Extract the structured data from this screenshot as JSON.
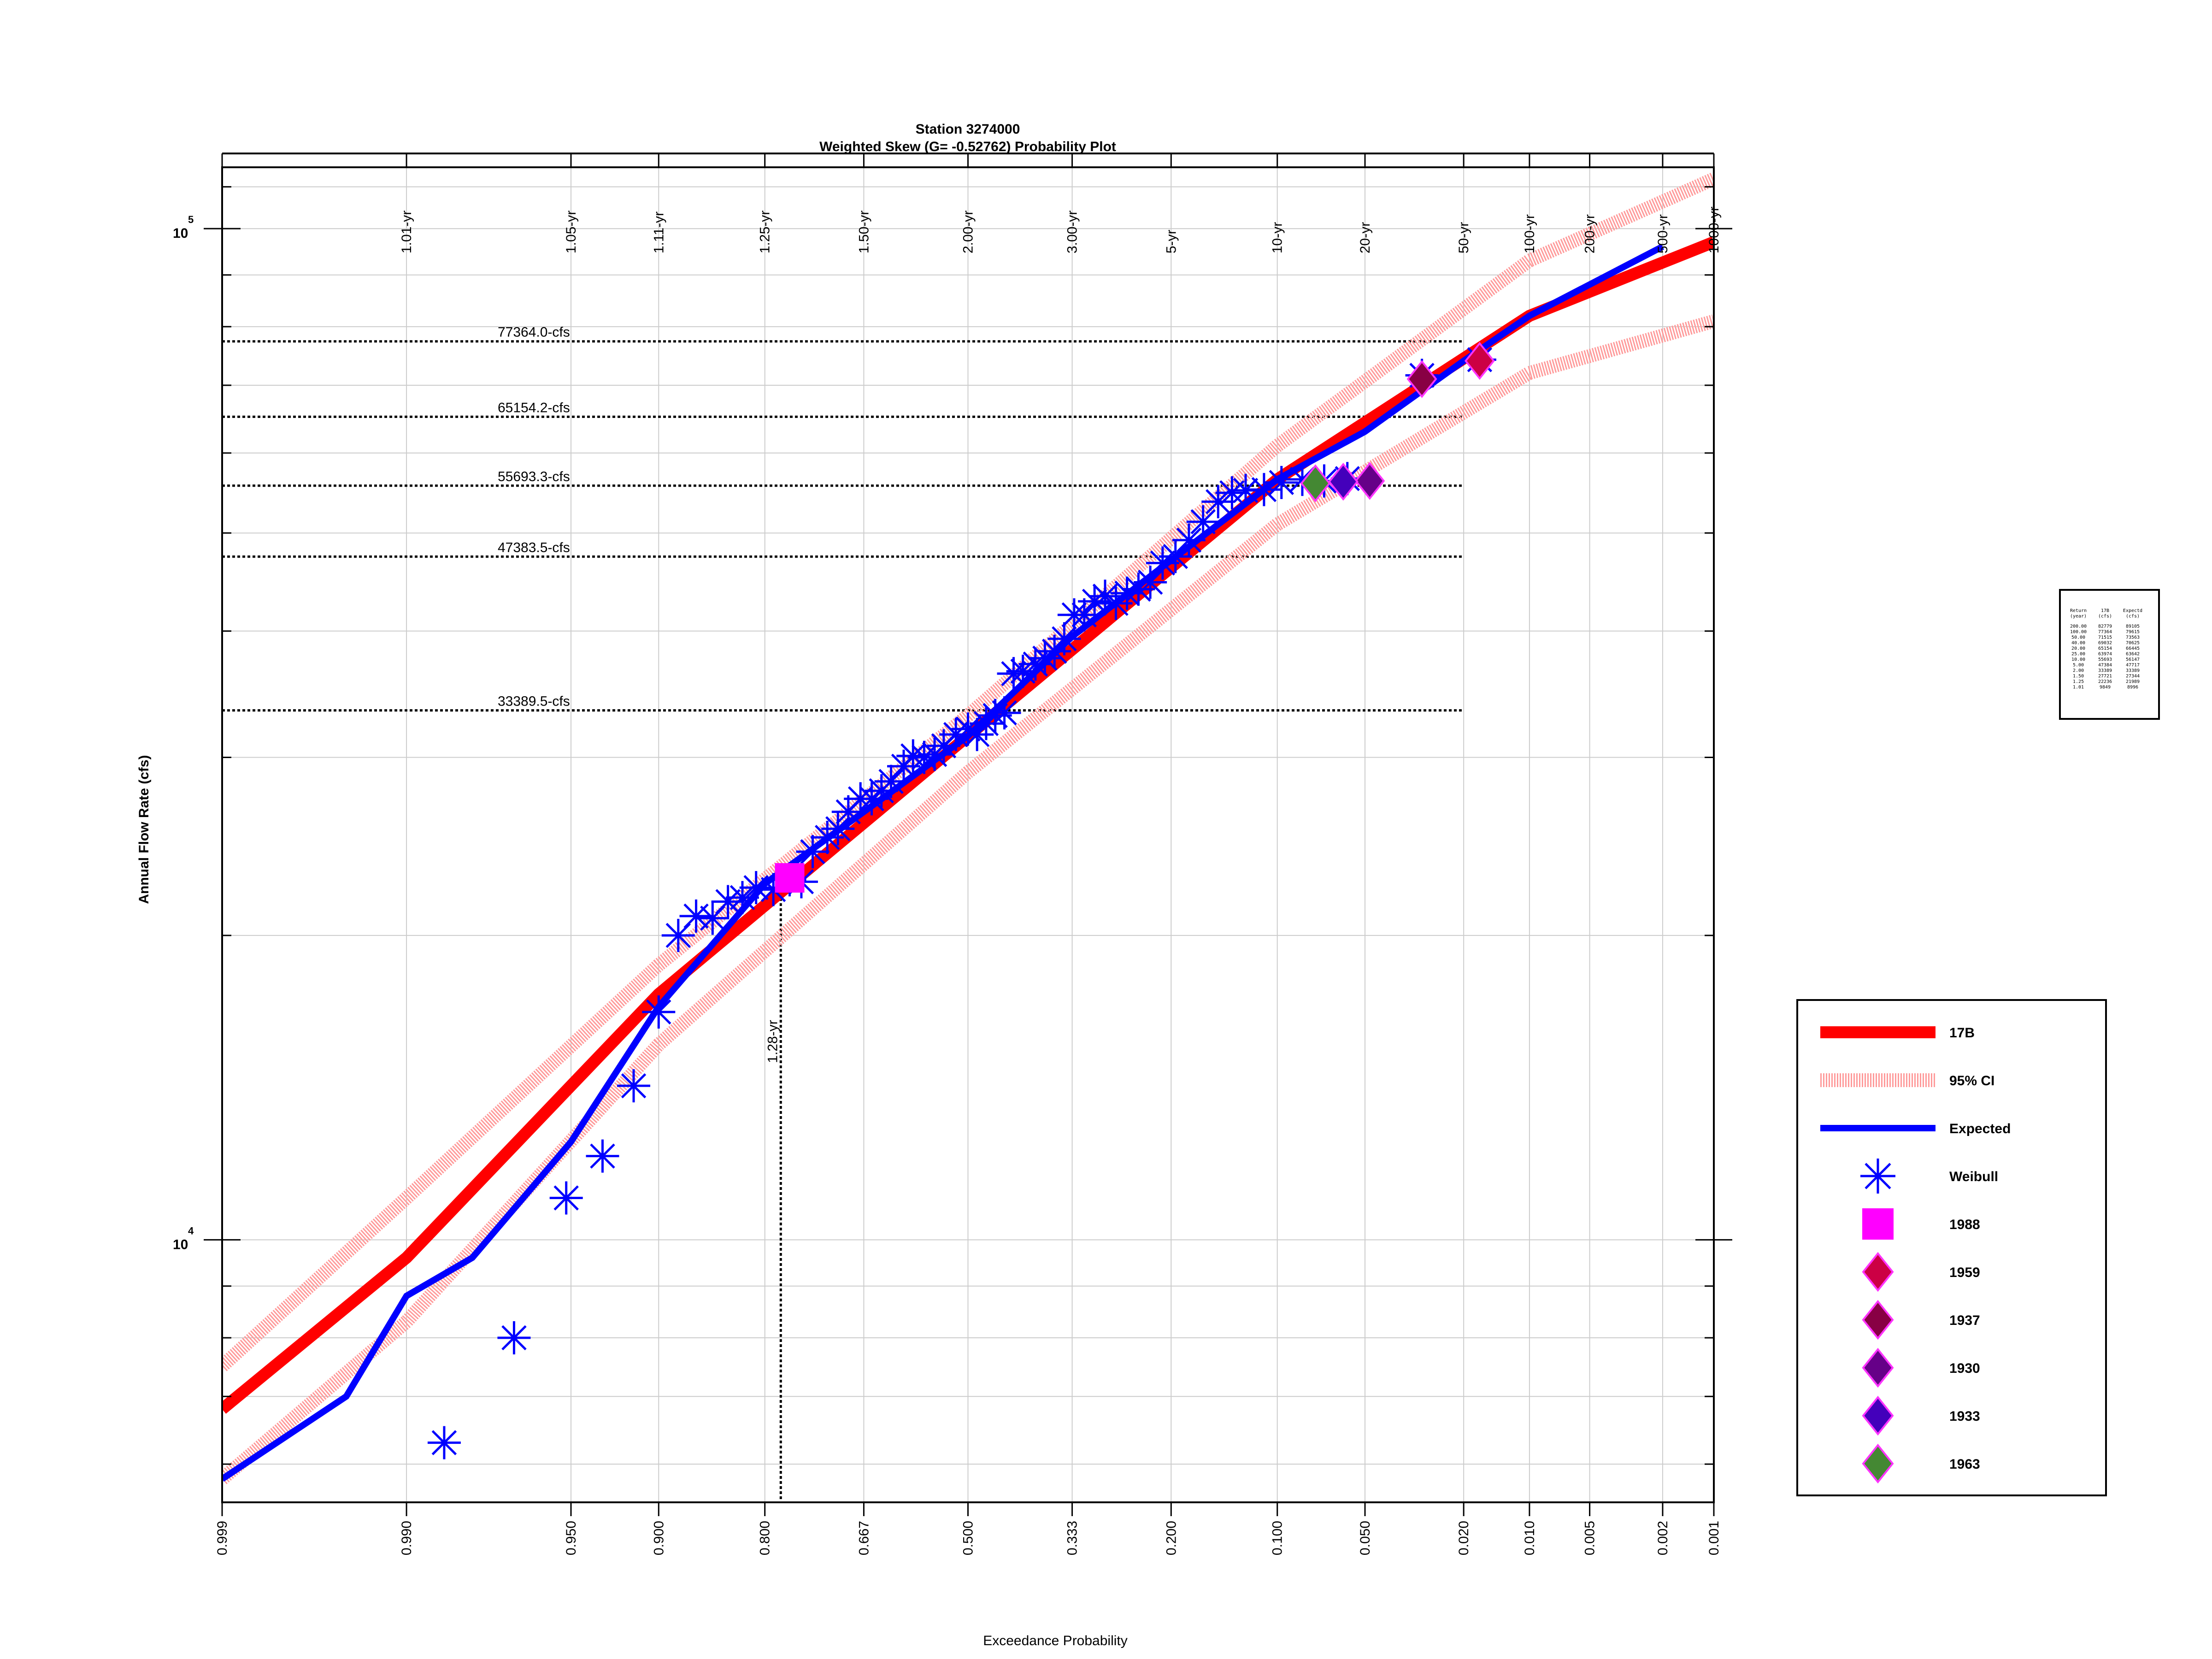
{
  "chart_data": {
    "type": "scatter",
    "title_line1": "Station 3274000",
    "title_line2": "Weighted Skew (G= -0.52762) Probability Plot",
    "xlabel": "Exceedance Probability",
    "ylabel": "Annual Flow Rate (cfs)",
    "x_scale": "normal-probability",
    "y_scale": "log",
    "ylim": [
      5500,
      115000
    ],
    "xlim": [
      0.999,
      0.001
    ],
    "grid": true,
    "x_ticks": [
      0.999,
      0.99,
      0.95,
      0.9,
      0.8,
      0.667,
      0.5,
      0.333,
      0.2,
      0.1,
      0.05,
      0.02,
      0.01,
      0.005,
      0.002,
      0.001
    ],
    "x_tick_labels": [
      "0.999",
      "0.990",
      "0.950",
      "0.900",
      "0.800",
      "0.667",
      "0.500",
      "0.333",
      "0.200",
      "0.100",
      "0.050",
      "0.020",
      "0.010",
      "0.005",
      "0.002",
      "0.001"
    ],
    "top_ticks": [
      0.99,
      0.95,
      0.9,
      0.8,
      0.667,
      0.5,
      0.333,
      0.2,
      0.1,
      0.05,
      0.02,
      0.01,
      0.005,
      0.002,
      0.001
    ],
    "top_tick_labels": [
      "1.01-yr",
      "1.05-yr",
      "1.11-yr",
      "1.25-yr",
      "1.50-yr",
      "2.00-yr",
      "3.00-yr",
      "5-yr",
      "10-yr",
      "20-yr",
      "50-yr",
      "100-yr",
      "200-yr",
      "500-yr",
      "1000-yr"
    ],
    "y_major_labels": [
      {
        "base": "10",
        "exp": "4",
        "value": 10000
      },
      {
        "base": "10",
        "exp": "5",
        "value": 100000
      }
    ],
    "reference_lines": [
      {
        "label": "77364.0-cfs",
        "value": 77364.0
      },
      {
        "label": "65154.2-cfs",
        "value": 65154.2
      },
      {
        "label": "55693.3-cfs",
        "value": 55693.3
      },
      {
        "label": "47383.5-cfs",
        "value": 47383.5
      },
      {
        "label": "33389.5-cfs",
        "value": 33389.5
      }
    ],
    "vertical_marker": {
      "label": "1.28-yr",
      "p": 0.781
    },
    "series": [
      {
        "name": "17B",
        "kind": "line",
        "color": "#ff0000",
        "x": [
          0.999,
          0.99,
          0.9,
          0.5,
          0.1,
          0.01,
          0.001
        ],
        "y": [
          6800,
          9600,
          17500,
          31500,
          56500,
          82000,
          97000
        ]
      },
      {
        "name": "95% CI",
        "kind": "line",
        "color": "#ff9a9a",
        "x": [
          0.999,
          0.99,
          0.9,
          0.5,
          0.1,
          0.01,
          0.001
        ],
        "y": [
          7500,
          11000,
          18700,
          33000,
          61000,
          93000,
          112000
        ]
      },
      {
        "name": "95% CI",
        "kind": "line",
        "color": "#ff9a9a",
        "x": [
          0.999,
          0.99,
          0.9,
          0.5,
          0.1,
          0.01,
          0.001
        ],
        "y": [
          5800,
          8300,
          15600,
          29000,
          51000,
          72000,
          81000
        ]
      },
      {
        "name": "Expected",
        "kind": "line",
        "color": "#0000ff",
        "x": [
          0.999,
          0.995,
          0.99,
          0.98,
          0.95,
          0.9,
          0.8,
          0.667,
          0.5,
          0.333,
          0.2,
          0.1,
          0.05,
          0.02,
          0.01,
          0.002
        ],
        "y": [
          5800,
          7000,
          8800,
          9600,
          12500,
          17000,
          22500,
          26500,
          31500,
          39500,
          47000,
          56500,
          63000,
          74000,
          82000,
          96000
        ]
      },
      {
        "name": "Weibull",
        "kind": "points",
        "color": "#0000ff",
        "x": [
          0.985,
          0.97,
          0.952,
          0.935,
          0.917,
          0.9,
          0.885,
          0.87,
          0.855,
          0.84,
          0.825,
          0.81,
          0.79,
          0.77,
          0.755,
          0.74,
          0.72,
          0.705,
          0.69,
          0.672,
          0.655,
          0.64,
          0.625,
          0.605,
          0.59,
          0.572,
          0.555,
          0.54,
          0.52,
          0.5,
          0.485,
          0.47,
          0.455,
          0.44,
          0.425,
          0.41,
          0.39,
          0.375,
          0.36,
          0.345,
          0.33,
          0.315,
          0.3,
          0.285,
          0.27,
          0.255,
          0.24,
          0.225,
          0.21,
          0.195,
          0.18,
          0.165,
          0.15,
          0.137,
          0.125,
          0.11,
          0.097,
          0.083,
          0.07,
          0.058,
          0.03,
          0.017
        ],
        "y": [
          6300,
          8000,
          11000,
          12100,
          14200,
          16800,
          20000,
          20900,
          20800,
          21600,
          21800,
          22300,
          22200,
          22700,
          22600,
          24200,
          25000,
          25500,
          26500,
          27300,
          27300,
          27800,
          28400,
          29400,
          30100,
          30000,
          30200,
          30800,
          31600,
          32000,
          31600,
          32400,
          33000,
          33200,
          36300,
          36500,
          37100,
          37600,
          38200,
          39300,
          41500,
          41500,
          42800,
          43300,
          42600,
          43600,
          44000,
          44700,
          46700,
          47400,
          49200,
          51300,
          53700,
          54800,
          55100,
          55200,
          56100,
          56500,
          56300,
          56600,
          71600,
          74200
        ]
      },
      {
        "name": "1988",
        "kind": "marker",
        "color": "#ff00ff",
        "x": [
          0.77
        ],
        "y": [
          22800
        ]
      },
      {
        "name": "1959",
        "kind": "marker",
        "color": "#cc0044",
        "x": [
          0.017
        ],
        "y": [
          74000
        ]
      },
      {
        "name": "1937",
        "kind": "marker",
        "color": "#880044",
        "x": [
          0.03
        ],
        "y": [
          71000
        ]
      },
      {
        "name": "1930",
        "kind": "marker",
        "color": "#660088",
        "x": [
          0.048
        ],
        "y": [
          56300
        ]
      },
      {
        "name": "1933",
        "kind": "marker",
        "color": "#4400bb",
        "x": [
          0.06
        ],
        "y": [
          56200
        ]
      },
      {
        "name": "1963",
        "kind": "marker",
        "color": "#448833",
        "x": [
          0.075
        ],
        "y": [
          56000
        ]
      }
    ],
    "legend_position": "right",
    "legend": [
      {
        "label": "17B",
        "symbol": "thick-line",
        "color": "#ff0000"
      },
      {
        "label": "95% CI",
        "symbol": "hatched-line",
        "color": "#ff9a9a"
      },
      {
        "label": "Expected",
        "symbol": "line",
        "color": "#0000ff"
      },
      {
        "label": "Weibull",
        "symbol": "asterisk",
        "color": "#0000ff"
      },
      {
        "label": "1988",
        "symbol": "square",
        "color": "#ff00ff"
      },
      {
        "label": "1959",
        "symbol": "diamond",
        "color": "#cc0044"
      },
      {
        "label": "1937",
        "symbol": "diamond",
        "color": "#880044"
      },
      {
        "label": "1930",
        "symbol": "diamond",
        "color": "#660088"
      },
      {
        "label": "1933",
        "symbol": "diamond",
        "color": "#4400bb"
      },
      {
        "label": "1963",
        "symbol": "diamond",
        "color": "#448833"
      }
    ],
    "summary_table": {
      "header1": [
        "Return",
        "17B",
        "Expectd"
      ],
      "header2": [
        "(year)",
        "(cfs)",
        "(cfs)"
      ],
      "rows": [
        [
          "200.00",
          "82779",
          "89105"
        ],
        [
          "100.00",
          "77364",
          "79615"
        ],
        [
          "50.00",
          "71515",
          "73563"
        ],
        [
          "40.00",
          "69032",
          "70625"
        ],
        [
          "20.00",
          "65154",
          "66445"
        ],
        [
          "25.00",
          "63974",
          "63642"
        ],
        [
          "10.00",
          "55693",
          "56147"
        ],
        [
          "5.00",
          "47384",
          "47717"
        ],
        [
          "2.00",
          "33389",
          "33389"
        ],
        [
          "1.50",
          "27721",
          "27344"
        ],
        [
          "1.25",
          "22236",
          "21989"
        ],
        [
          "1.01",
          "9849",
          "8996"
        ]
      ]
    }
  }
}
